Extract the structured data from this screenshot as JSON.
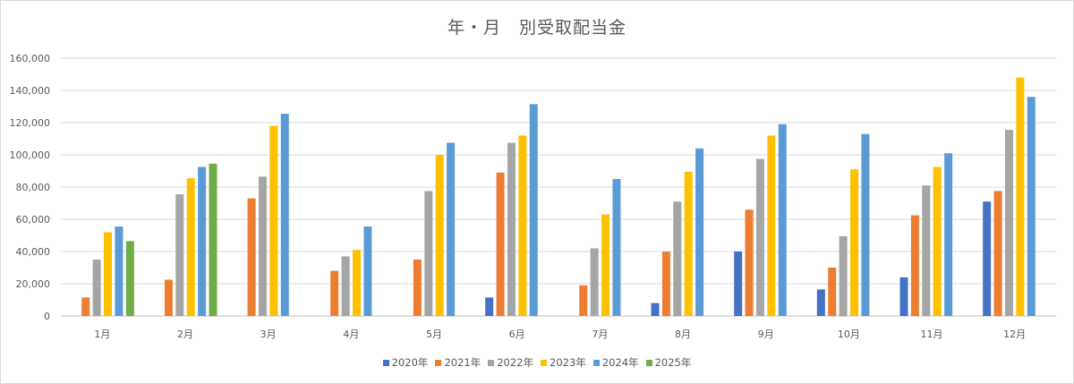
{
  "chart_data": {
    "type": "bar",
    "title": "年・月　別受取配当金",
    "xlabel": "",
    "ylabel": "",
    "ylim": [
      0,
      160000
    ],
    "yticks": [
      "0",
      "20,000",
      "40,000",
      "60,000",
      "80,000",
      "100,000",
      "120,000",
      "140,000",
      "160,000"
    ],
    "grid": true,
    "legend_position": "bottom",
    "categories": [
      "1月",
      "2月",
      "3月",
      "4月",
      "5月",
      "6月",
      "7月",
      "8月",
      "9月",
      "10月",
      "11月",
      "12月"
    ],
    "series": [
      {
        "name": "2020年",
        "color": "#4472c4",
        "values": [
          null,
          null,
          null,
          null,
          null,
          11500,
          null,
          8000,
          40000,
          16500,
          24000,
          71000
        ]
      },
      {
        "name": "2021年",
        "color": "#ed7d31",
        "values": [
          11500,
          22500,
          73000,
          28000,
          35000,
          89000,
          19000,
          40000,
          66000,
          30000,
          62500,
          77500
        ]
      },
      {
        "name": "2022年",
        "color": "#a5a5a5",
        "values": [
          35000,
          75500,
          86500,
          37000,
          77500,
          107500,
          42000,
          71000,
          97500,
          49500,
          81000,
          115500
        ]
      },
      {
        "name": "2023年",
        "color": "#ffc000",
        "values": [
          52000,
          85500,
          118000,
          41000,
          100000,
          112000,
          63000,
          89500,
          112000,
          91000,
          92500,
          148000
        ]
      },
      {
        "name": "2024年",
        "color": "#5b9bd5",
        "values": [
          55500,
          92500,
          125500,
          55500,
          107500,
          131500,
          85000,
          104000,
          119000,
          113000,
          101000,
          136000
        ]
      },
      {
        "name": "2025年",
        "color": "#70ad47",
        "values": [
          46500,
          94500,
          null,
          null,
          null,
          null,
          null,
          null,
          null,
          null,
          null,
          null
        ]
      }
    ]
  }
}
